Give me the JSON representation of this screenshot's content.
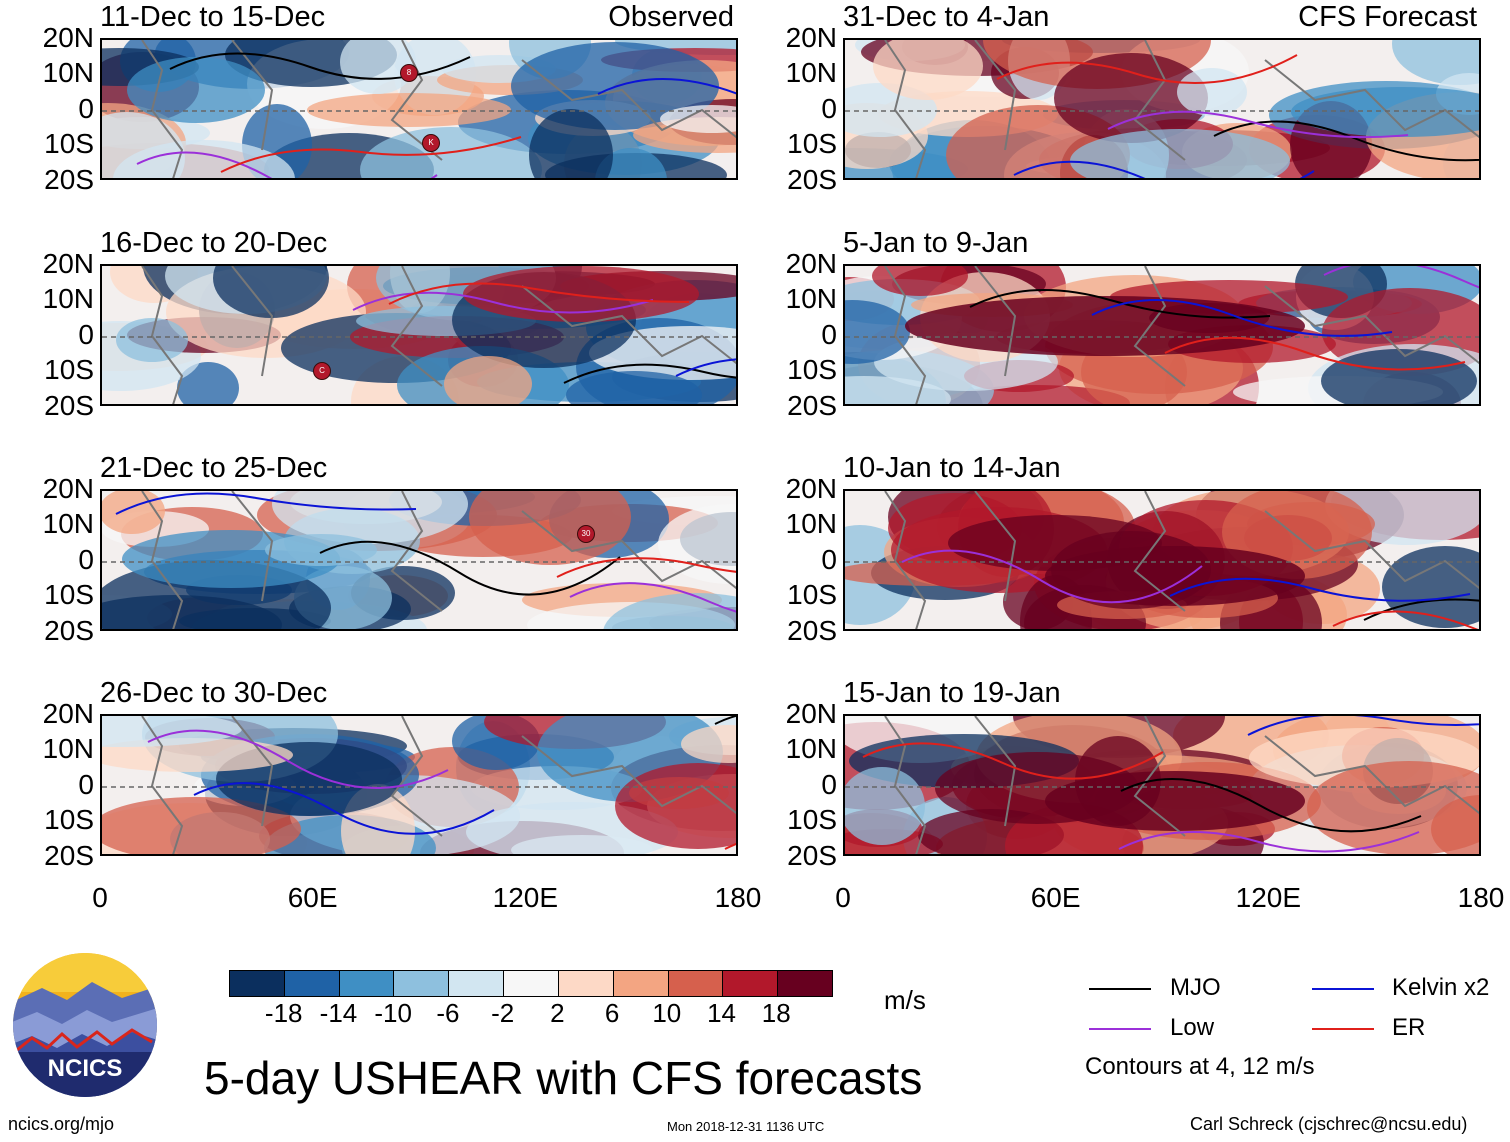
{
  "panels": [
    {
      "id": "p1",
      "title": "11-Dec to 15-Dec",
      "label": "Observed",
      "col": 0,
      "row": 0,
      "tc": [
        "8",
        "K"
      ]
    },
    {
      "id": "p2",
      "title": "16-Dec to 20-Dec",
      "label": "",
      "col": 0,
      "row": 1,
      "tc": [
        "C"
      ]
    },
    {
      "id": "p3",
      "title": "21-Dec to 25-Dec",
      "label": "",
      "col": 0,
      "row": 2,
      "tc": [
        "30"
      ]
    },
    {
      "id": "p4",
      "title": "26-Dec to 30-Dec",
      "label": "",
      "col": 0,
      "row": 3,
      "tc": []
    },
    {
      "id": "p5",
      "title": "31-Dec to 4-Jan",
      "label": "CFS Forecast",
      "col": 1,
      "row": 0,
      "tc": []
    },
    {
      "id": "p6",
      "title": "5-Jan to 9-Jan",
      "label": "",
      "col": 1,
      "row": 1,
      "tc": []
    },
    {
      "id": "p7",
      "title": "10-Jan to 14-Jan",
      "label": "",
      "col": 1,
      "row": 2,
      "tc": []
    },
    {
      "id": "p8",
      "title": "15-Jan to 19-Jan",
      "label": "",
      "col": 1,
      "row": 3,
      "tc": []
    }
  ],
  "lat_labels": [
    "20N",
    "10N",
    "0",
    "10S",
    "20S"
  ],
  "lon_labels": [
    "0",
    "60E",
    "120E",
    "180"
  ],
  "colorbar": {
    "colors": [
      "#0b2f5e",
      "#1f62a6",
      "#3f8fc4",
      "#8ec0de",
      "#d2e6f1",
      "#f7f7f7",
      "#fdd9c6",
      "#f3a582",
      "#d6604d",
      "#b2182b",
      "#67001f"
    ],
    "labels": [
      "-18",
      "-14",
      "-10",
      "-6",
      "-2",
      "2",
      "6",
      "10",
      "14",
      "18"
    ],
    "units": "m/s"
  },
  "legend": {
    "items": [
      {
        "label": "MJO",
        "color": "#000000"
      },
      {
        "label": "Kelvin x2",
        "color": "#0b14d6"
      },
      {
        "label": "Low",
        "color": "#9b30d9"
      },
      {
        "label": "ER",
        "color": "#e0201b"
      }
    ],
    "contours_note": "Contours at 4, 12 m/s"
  },
  "logo": {
    "text": "NCICS"
  },
  "main_title": "5-day USHEAR with CFS forecasts",
  "footer": {
    "left": "ncics.org/mjo",
    "center": "Mon 2018-12-31 1136 UTC",
    "right": "Carl Schreck (cjschrec@ncsu.edu)"
  }
}
